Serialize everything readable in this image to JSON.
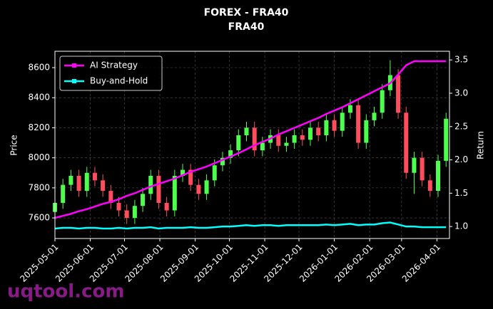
{
  "chart_data": {
    "type": "candlestick",
    "title": "FOREX - FRA40",
    "subtitle": "FRA40",
    "ylabel": "Price",
    "y2label": "Return",
    "watermark": "uqtool.com",
    "x": [
      "2025-05-01",
      "2025-05-08",
      "2025-05-15",
      "2025-05-22",
      "2025-05-29",
      "2025-06-05",
      "2025-06-12",
      "2025-06-19",
      "2025-06-26",
      "2025-07-03",
      "2025-07-10",
      "2025-07-17",
      "2025-07-24",
      "2025-07-31",
      "2025-08-07",
      "2025-08-14",
      "2025-08-21",
      "2025-08-28",
      "2025-09-04",
      "2025-09-11",
      "2025-09-18",
      "2025-09-25",
      "2025-10-02",
      "2025-10-09",
      "2025-10-16",
      "2025-10-23",
      "2025-10-30",
      "2025-11-06",
      "2025-11-13",
      "2025-11-20",
      "2025-11-27",
      "2025-12-04",
      "2025-12-11",
      "2025-12-18",
      "2025-12-25",
      "2026-01-01",
      "2026-01-08",
      "2026-01-15",
      "2026-01-22",
      "2026-01-29",
      "2026-02-05",
      "2026-02-12",
      "2026-02-19",
      "2026-02-26",
      "2026-03-05",
      "2026-03-12",
      "2026-03-19",
      "2026-03-26",
      "2026-04-02",
      "2026-04-09"
    ],
    "open": [
      7640,
      7700,
      7820,
      7880,
      7780,
      7900,
      7850,
      7780,
      7700,
      7650,
      7600,
      7680,
      7760,
      7880,
      7700,
      7650,
      7880,
      7920,
      7820,
      7760,
      7850,
      7950,
      8000,
      8050,
      8150,
      8200,
      8050,
      8100,
      8150,
      8080,
      8100,
      8150,
      8120,
      8200,
      8150,
      8250,
      8180,
      8300,
      8350,
      8100,
      8250,
      8300,
      8450,
      8550,
      8300,
      7900,
      8000,
      7850,
      7780,
      7980
    ],
    "high": [
      7740,
      7860,
      7920,
      7920,
      7940,
      7940,
      7890,
      7820,
      7740,
      7690,
      7720,
      7800,
      7920,
      7920,
      7740,
      7920,
      7960,
      7960,
      7860,
      7890,
      7990,
      8040,
      8090,
      8190,
      8240,
      8240,
      8140,
      8190,
      8190,
      8140,
      8190,
      8190,
      8240,
      8240,
      8290,
      8290,
      8340,
      8390,
      8390,
      8290,
      8340,
      8490,
      8650,
      8590,
      8340,
      8040,
      8040,
      7890,
      8020,
      8300
    ],
    "low": [
      7600,
      7660,
      7780,
      7740,
      7740,
      7810,
      7740,
      7660,
      7610,
      7560,
      7560,
      7640,
      7720,
      7660,
      7610,
      7610,
      7840,
      7780,
      7720,
      7720,
      7810,
      7910,
      7960,
      8010,
      8110,
      8010,
      8010,
      8060,
      8040,
      8040,
      8060,
      8080,
      8080,
      8110,
      8110,
      8140,
      8140,
      8260,
      8060,
      8060,
      8210,
      8260,
      8410,
      8260,
      7860,
      7760,
      7810,
      7740,
      7740,
      7940
    ],
    "close": [
      7700,
      7820,
      7880,
      7780,
      7900,
      7850,
      7780,
      7700,
      7650,
      7600,
      7680,
      7760,
      7880,
      7700,
      7650,
      7880,
      7920,
      7820,
      7760,
      7850,
      7950,
      8000,
      8050,
      8150,
      8200,
      8050,
      8100,
      8150,
      8080,
      8100,
      8150,
      8120,
      8200,
      8150,
      8250,
      8180,
      8300,
      8350,
      8100,
      8250,
      8300,
      8450,
      8550,
      8300,
      7900,
      8000,
      7850,
      7780,
      7980,
      8260
    ],
    "up_color": "#4dff4d",
    "down_color": "#ff4d5e",
    "series": [
      {
        "name": "AI Strategy",
        "color": "#ff00ff",
        "axis": "y2",
        "values": [
          1.13,
          1.16,
          1.19,
          1.23,
          1.26,
          1.3,
          1.34,
          1.37,
          1.41,
          1.46,
          1.5,
          1.55,
          1.6,
          1.64,
          1.68,
          1.72,
          1.77,
          1.82,
          1.86,
          1.9,
          1.95,
          2.0,
          2.05,
          2.1,
          2.16,
          2.22,
          2.27,
          2.32,
          2.38,
          2.43,
          2.48,
          2.53,
          2.58,
          2.63,
          2.69,
          2.74,
          2.79,
          2.85,
          2.91,
          2.97,
          3.03,
          3.09,
          3.15,
          3.28,
          3.42,
          3.48,
          3.48,
          3.48,
          3.48,
          3.48
        ]
      },
      {
        "name": "Buy-and-Hold",
        "color": "#00ffff",
        "axis": "y2",
        "values": [
          0.97,
          0.98,
          0.98,
          0.97,
          0.98,
          0.98,
          0.97,
          0.97,
          0.98,
          0.97,
          0.98,
          0.98,
          0.99,
          0.97,
          0.98,
          0.98,
          0.98,
          0.99,
          0.98,
          0.98,
          0.99,
          1.0,
          1.0,
          1.01,
          1.02,
          1.01,
          1.02,
          1.02,
          1.01,
          1.02,
          1.02,
          1.02,
          1.02,
          1.02,
          1.03,
          1.02,
          1.03,
          1.04,
          1.02,
          1.03,
          1.03,
          1.05,
          1.06,
          1.03,
          1.0,
          1.0,
          0.99,
          0.99,
          0.99,
          0.99
        ]
      }
    ],
    "xlim": [
      "2025-05-01",
      "2026-04-12"
    ],
    "xticks": [
      "2025-05-01",
      "2025-06-01",
      "2025-07-01",
      "2025-08-01",
      "2025-09-01",
      "2025-10-01",
      "2025-11-01",
      "2025-12-01",
      "2026-01-01",
      "2026-02-01",
      "2026-03-01",
      "2026-04-01"
    ],
    "ylim": [
      7463,
      8709
    ],
    "yticks": [
      7600,
      7800,
      8000,
      8200,
      8400,
      8600
    ],
    "y2lim": [
      0.82,
      3.63
    ],
    "y2ticks": [
      {
        "value": 1,
        "label": "1.0"
      },
      {
        "value": 1.5,
        "label": "1.5"
      },
      {
        "value": 2,
        "label": "2.0"
      },
      {
        "value": 2.5,
        "label": "2.5"
      },
      {
        "value": 3,
        "label": "3.0"
      },
      {
        "value": 3.5,
        "label": "3.5"
      }
    ],
    "grid": true,
    "legend": "upper left"
  }
}
